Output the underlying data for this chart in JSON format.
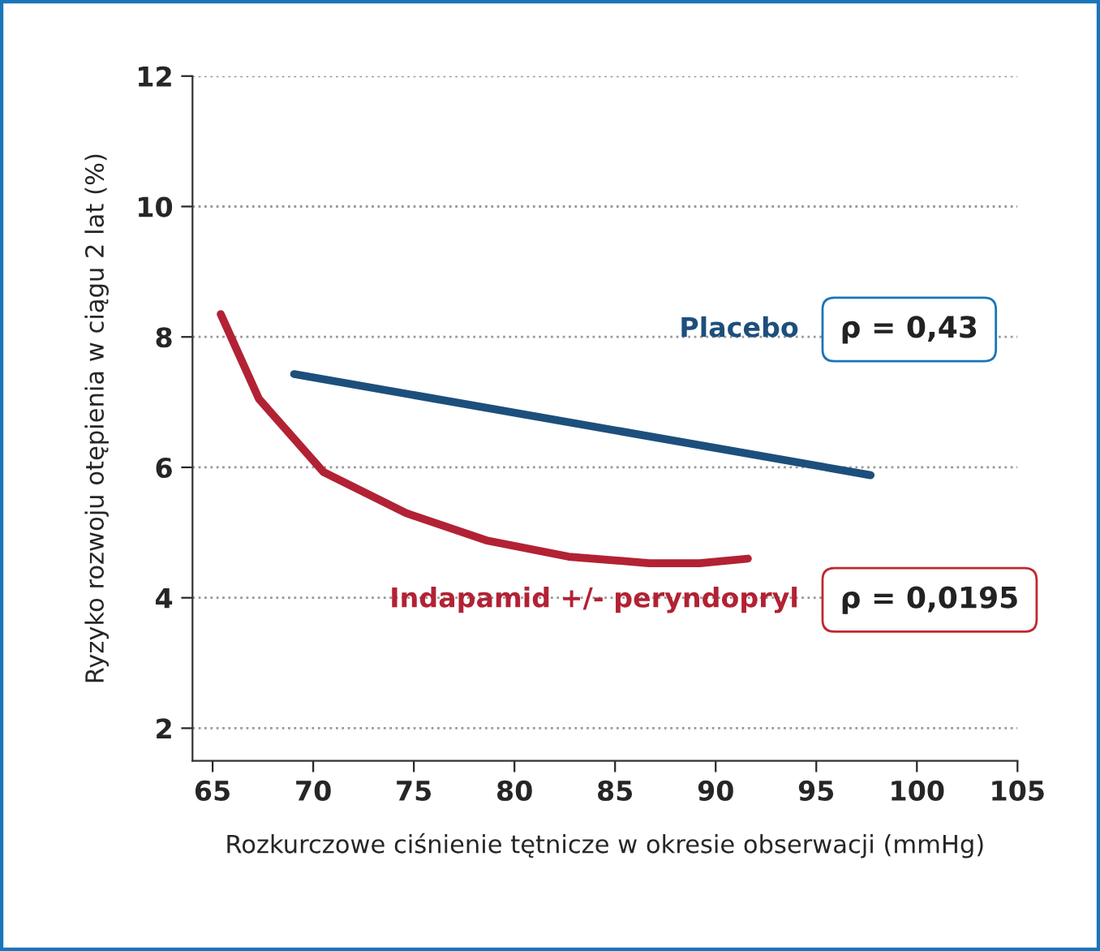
{
  "chart_data": {
    "type": "line",
    "xlabel": "Rozkurczowe ciśnienie tętnicze w okresie obserwacji (mmHg)",
    "ylabel": "Ryzyko rozwoju otępienia w ciągu 2 lat (%)",
    "series": [
      {
        "name": "Placebo",
        "color": "#1d4f7c",
        "x": [
          69.05,
          97.7
        ],
        "values": [
          7.43,
          5.88
        ]
      },
      {
        "name": "Indapamid +/- peryndopryl",
        "color": "#b22234",
        "x": [
          65.4,
          67.3,
          70.5,
          74.6,
          78.6,
          82.7,
          86.7,
          89.2,
          91.6
        ],
        "values": [
          8.35,
          7.05,
          5.93,
          5.3,
          4.88,
          4.63,
          4.53,
          4.53,
          4.6
        ]
      }
    ],
    "annotations": [
      "ρ = 0,43",
      "ρ = 0,0195"
    ],
    "xlim": [
      64,
      105
    ],
    "ylim": [
      1.5,
      12
    ],
    "xticks": [
      65,
      70,
      75,
      80,
      85,
      90,
      95,
      100,
      105
    ],
    "yticks": [
      2,
      4,
      6,
      8,
      10,
      12
    ],
    "grid": "y",
    "legend": false,
    "marker": "none",
    "line_style": "solid"
  }
}
